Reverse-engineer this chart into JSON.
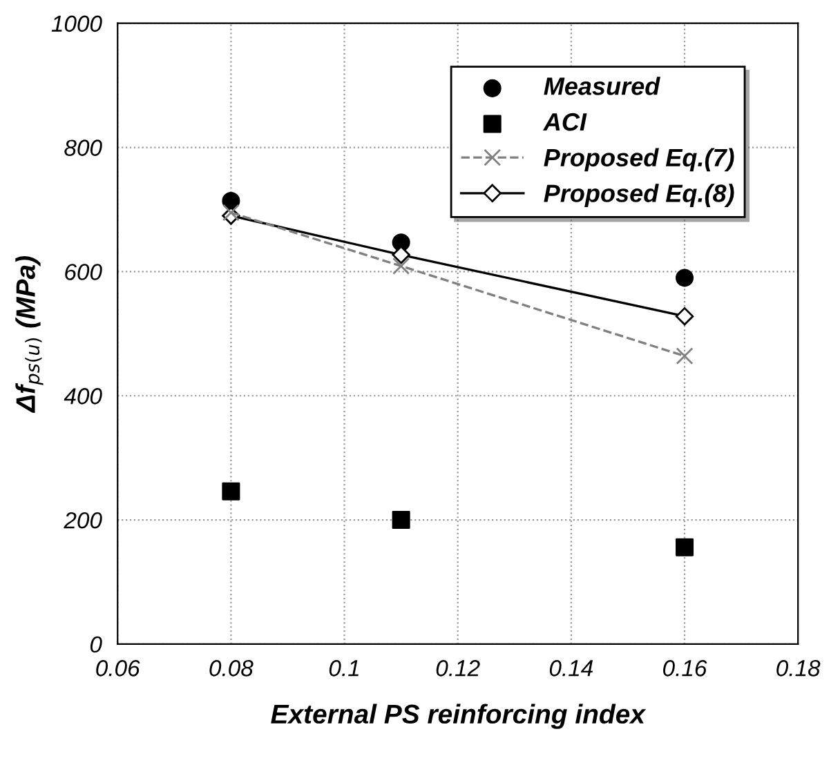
{
  "chart_data": {
    "type": "scatter",
    "xlabel": "External PS reinforcing index",
    "ylabel": "Δf$_{ps(u)}$ (MPa)",
    "x": [
      0.08,
      0.11,
      0.16
    ],
    "series": [
      {
        "name": "Measured",
        "marker": "circle",
        "color": "#000000",
        "values": [
          714,
          647,
          590
        ]
      },
      {
        "name": "ACI",
        "marker": "square",
        "color": "#000000",
        "values": [
          246,
          200,
          156
        ]
      },
      {
        "name": "Proposed Eq.(7)",
        "type": "line",
        "marker": "cross",
        "line_style": "dashed",
        "color": "#808080",
        "values": [
          695,
          609,
          464
        ]
      },
      {
        "name": "Proposed Eq.(8)",
        "type": "line",
        "marker": "diamond",
        "line_style": "solid",
        "color": "#000000",
        "values": [
          690,
          627,
          528
        ]
      }
    ],
    "xlim": [
      0.06,
      0.18
    ],
    "xticks": [
      0.06,
      0.08,
      0.1,
      0.12,
      0.14,
      0.16,
      0.18
    ],
    "ylim": [
      0,
      1000
    ],
    "yticks": [
      0,
      200,
      400,
      600,
      800,
      1000
    ],
    "grid": true,
    "legend": "top right"
  }
}
